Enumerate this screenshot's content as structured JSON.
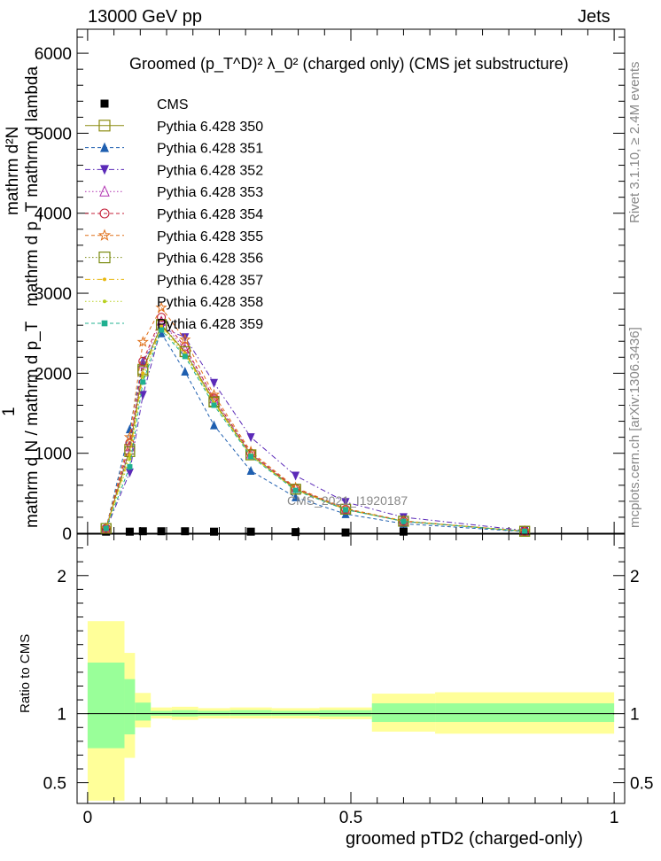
{
  "header": {
    "left": "13000 GeV pp",
    "right": "Jets"
  },
  "side_labels": {
    "rivet": "Rivet 3.1.10, ≥ 2.4M events",
    "mcplots": "mcplots.cern.ch [arXiv:1306.3436]"
  },
  "watermark": "CMS_2021_I1920187",
  "y_axis_label": {
    "line1": "mathrm d²N",
    "line2": "mathrm d p_T mathrm d lambda",
    "line3": "1",
    "line4": "mathrm d N / mathrm d p_T"
  },
  "ratio_ylabel": "Ratio to CMS",
  "chart_data": [
    {
      "type": "line",
      "title": "Groomed (p_T^D)² λ_0² (charged only) (CMS jet substructure)",
      "xlabel": "groomed pTD2 (charged-only)",
      "ylabel": "",
      "xlim": [
        -0.02,
        1.02
      ],
      "ylim": [
        0,
        6300
      ],
      "x_ticks": [
        "0",
        "0.5",
        "1"
      ],
      "y_ticks": [
        "0",
        "1000",
        "2000",
        "3000",
        "4000",
        "5000",
        "6000"
      ],
      "legend_position": "top-left",
      "x": [
        0.035,
        0.08,
        0.105,
        0.14,
        0.185,
        0.24,
        0.31,
        0.395,
        0.49,
        0.6,
        0.83
      ],
      "series": [
        {
          "name": "CMS",
          "color": "#000000",
          "marker": "square-filled",
          "dash": "none",
          "values": [
            20,
            20,
            25,
            25,
            25,
            20,
            20,
            15,
            10,
            20,
            10
          ]
        },
        {
          "name": "Pythia 6.428 350",
          "color": "#8c8c10",
          "marker": "square-open",
          "dash": "solid",
          "values": [
            60,
            1050,
            2050,
            2600,
            2270,
            1650,
            980,
            550,
            300,
            150,
            25
          ]
        },
        {
          "name": "Pythia 6.428 351",
          "color": "#1f5fb0",
          "marker": "triangle-up-filled",
          "dash": "dashed",
          "values": [
            60,
            1300,
            2150,
            2500,
            2020,
            1350,
            780,
            450,
            240,
            120,
            20
          ]
        },
        {
          "name": "Pythia 6.428 352",
          "color": "#5b2ab8",
          "marker": "triangle-down-filled",
          "dash": "dashdot",
          "values": [
            50,
            760,
            1730,
            2570,
            2450,
            1880,
            1200,
            720,
            390,
            200,
            35
          ]
        },
        {
          "name": "Pythia 6.428 353",
          "color": "#b030b0",
          "marker": "triangle-up-open",
          "dash": "dotted",
          "values": [
            60,
            1080,
            2120,
            2650,
            2300,
            1680,
            990,
            560,
            300,
            150,
            25
          ]
        },
        {
          "name": "Pythia 6.428 354",
          "color": "#c4203a",
          "marker": "circle-open",
          "dash": "dashed",
          "values": [
            60,
            1130,
            2150,
            2700,
            2330,
            1690,
            1000,
            560,
            300,
            150,
            25
          ]
        },
        {
          "name": "Pythia 6.428 355",
          "color": "#e0701a",
          "marker": "star-open",
          "dash": "dashed",
          "values": [
            60,
            1200,
            2390,
            2820,
            2420,
            1730,
            1020,
            570,
            310,
            155,
            25
          ]
        },
        {
          "name": "Pythia 6.428 356",
          "color": "#7a8a10",
          "marker": "square-open",
          "dash": "dotted",
          "values": [
            60,
            1020,
            2030,
            2610,
            2270,
            1640,
            980,
            550,
            300,
            150,
            25
          ]
        },
        {
          "name": "Pythia 6.428 357",
          "color": "#e8b810",
          "marker": "dot",
          "dash": "dashdot",
          "values": [
            60,
            980,
            2000,
            2590,
            2250,
            1630,
            975,
            545,
            298,
            150,
            25
          ]
        },
        {
          "name": "Pythia 6.428 358",
          "color": "#b8d020",
          "marker": "dot",
          "dash": "dotted",
          "values": [
            60,
            930,
            1950,
            2560,
            2230,
            1620,
            970,
            540,
            296,
            150,
            25
          ]
        },
        {
          "name": "Pythia 6.428 359",
          "color": "#20b090",
          "marker": "square-small",
          "dash": "dashed",
          "values": [
            60,
            830,
            1890,
            2540,
            2210,
            1600,
            960,
            535,
            294,
            148,
            24
          ]
        }
      ]
    },
    {
      "type": "area",
      "title": "",
      "xlabel": "groomed pTD2 (charged-only)",
      "ylabel": "Ratio to CMS",
      "xlim": [
        -0.02,
        1.02
      ],
      "ylim": [
        0.35,
        2.3
      ],
      "x_ticks": [
        "0",
        "0.5",
        "1"
      ],
      "y_ticks": [
        "0.5",
        "1",
        "2"
      ],
      "reference_line": 1,
      "bins": [
        {
          "x0": 0.0,
          "x1": 0.07,
          "stat": [
            0.75,
            1.37
          ],
          "total": [
            0.37,
            1.67
          ]
        },
        {
          "x0": 0.07,
          "x1": 0.09,
          "stat": [
            0.85,
            1.25
          ],
          "total": [
            0.68,
            1.44
          ]
        },
        {
          "x0": 0.09,
          "x1": 0.12,
          "stat": [
            0.95,
            1.08
          ],
          "total": [
            0.9,
            1.15
          ]
        },
        {
          "x0": 0.12,
          "x1": 0.16,
          "stat": [
            0.985,
            1.02
          ],
          "total": [
            0.965,
            1.045
          ]
        },
        {
          "x0": 0.16,
          "x1": 0.21,
          "stat": [
            0.98,
            1.025
          ],
          "total": [
            0.955,
            1.05
          ]
        },
        {
          "x0": 0.21,
          "x1": 0.27,
          "stat": [
            0.985,
            1.02
          ],
          "total": [
            0.965,
            1.04
          ]
        },
        {
          "x0": 0.27,
          "x1": 0.35,
          "stat": [
            0.985,
            1.025
          ],
          "total": [
            0.965,
            1.045
          ]
        },
        {
          "x0": 0.35,
          "x1": 0.44,
          "stat": [
            0.985,
            1.02
          ],
          "total": [
            0.965,
            1.04
          ]
        },
        {
          "x0": 0.44,
          "x1": 0.54,
          "stat": [
            0.98,
            1.025
          ],
          "total": [
            0.96,
            1.045
          ]
        },
        {
          "x0": 0.54,
          "x1": 0.66,
          "stat": [
            0.94,
            1.075
          ],
          "total": [
            0.87,
            1.145
          ]
        },
        {
          "x0": 0.66,
          "x1": 1.0,
          "stat": [
            0.94,
            1.075
          ],
          "total": [
            0.855,
            1.155
          ]
        }
      ]
    }
  ]
}
